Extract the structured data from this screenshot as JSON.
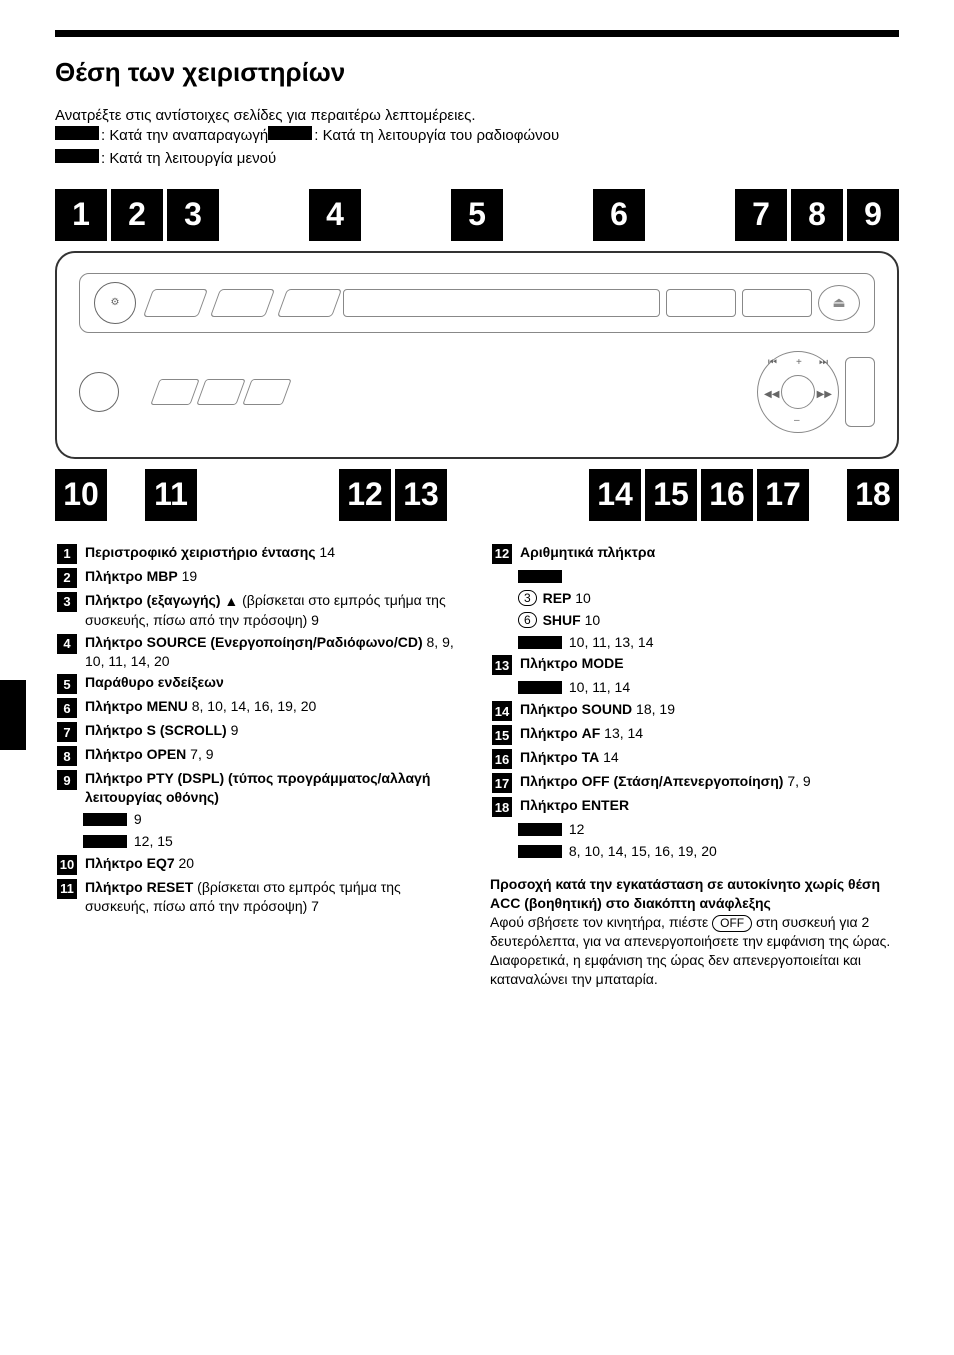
{
  "title": "Θέση των χειριστηρίων",
  "intro_line": "Ανατρέξτε στις αντίστοιχες σελίδες για περαιτέρω λεπτομέρειες.",
  "legend_play": ": Κατά την αναπαραγωγή ",
  "legend_radio": ": Κατά τη λειτουργία του ραδιοφώνου",
  "legend_menu": ": Κατά τη λειτουργία μενού",
  "callouts_top": [
    "1",
    "2",
    "3",
    "4",
    "5",
    "6",
    "7",
    "8",
    "9"
  ],
  "callouts_bottom": [
    "10",
    "11",
    "12",
    "13",
    "14",
    "15",
    "16",
    "17",
    "18"
  ],
  "left_items": [
    {
      "n": "1",
      "bold": "Περιστροφικό χειριστήριο έντασης",
      "rest": "  14"
    },
    {
      "n": "2",
      "bold": "Πλήκτρο MBP",
      "rest": "  19"
    },
    {
      "n": "3",
      "bold": "Πλήκτρο (εξαγωγής) ",
      "tri": "▲",
      "rest2": "  (βρίσκεται στο εμπρός τμήμα της συσκευής, πίσω από την πρόσοψη)  9"
    },
    {
      "n": "4",
      "bold": "Πλήκτρο SOURCE (Ενεργοποίηση/Ραδιόφωνο/CD)",
      "rest": "  8, 9, 10, 11, 14, 20"
    },
    {
      "n": "5",
      "bold": "Παράθυρο ενδείξεων",
      "rest": ""
    },
    {
      "n": "6",
      "bold": "Πλήκτρο MENU",
      "rest": "  8, 10, 14, 16, 19, 20"
    },
    {
      "n": "7",
      "bold": "Πλήκτρο S (SCROLL)",
      "rest": "  9"
    },
    {
      "n": "8",
      "bold": "Πλήκτρο OPEN",
      "rest": "  7, 9"
    },
    {
      "n": "9",
      "bold": "Πλήκτρο PTY (DSPL) (τύπος προγράμματος/αλλαγή λειτουργίας οθόνης)",
      "rest": ""
    },
    {
      "n": "10",
      "bold": "Πλήκτρο EQ7",
      "rest": "  20"
    },
    {
      "n": "11",
      "bold": "Πλήκτρο RESET",
      "rest": " (βρίσκεται στο εμπρός τμήμα της συσκευής, πίσω από την πρόσοψη)  7"
    }
  ],
  "left_sub9a": " 9",
  "left_sub9b": " 12, 15",
  "right_items_12_head": "Αριθμητικά πλήκτρα",
  "r12_rep": "REP",
  "r12_rep_p": "  10",
  "r12_shuf": "SHUF",
  "r12_shuf_p": "  10",
  "r12_last": " 10, 11, 13, 14",
  "r13_bold": "Πλήκτρο MODE",
  "r13_sub": " 10, 11, 14",
  "r14": "Πλήκτρο SOUND",
  "r14_p": "  18, 19",
  "r15": "Πλήκτρο AF",
  "r15_p": "  13, 14",
  "r16": "Πλήκτρο TA",
  "r16_p": "  14",
  "r17": "Πλήκτρο OFF (Στάση/Απενεργοποίηση)",
  "r17_p": "  7, 9",
  "r18": "Πλήκτρο ENTER",
  "r18_sub1": " 12",
  "r18_sub2": " 8, 10, 14, 15, 16, 19, 20",
  "caution_head": "Προσοχή κατά την εγκατάσταση σε αυτοκίνητο χωρίς θέση ACC (βοηθητική) στο διακόπτη ανάφλεξης",
  "caution_1a": "Αφού σβήσετε τον κινητήρα, πιέστε ",
  "caution_off": "OFF",
  "caution_1b": " στη συσκευή για 2 δευτερόλεπτα, για να απενεργοποιήσετε την εμφάνιση της ώρας.",
  "caution_2": "Διαφορετικά, η εμφάνιση της ώρας δεν απενεργοποιείται και καταναλώνει την μπαταρία.",
  "circ3": "3",
  "circ6": "6"
}
